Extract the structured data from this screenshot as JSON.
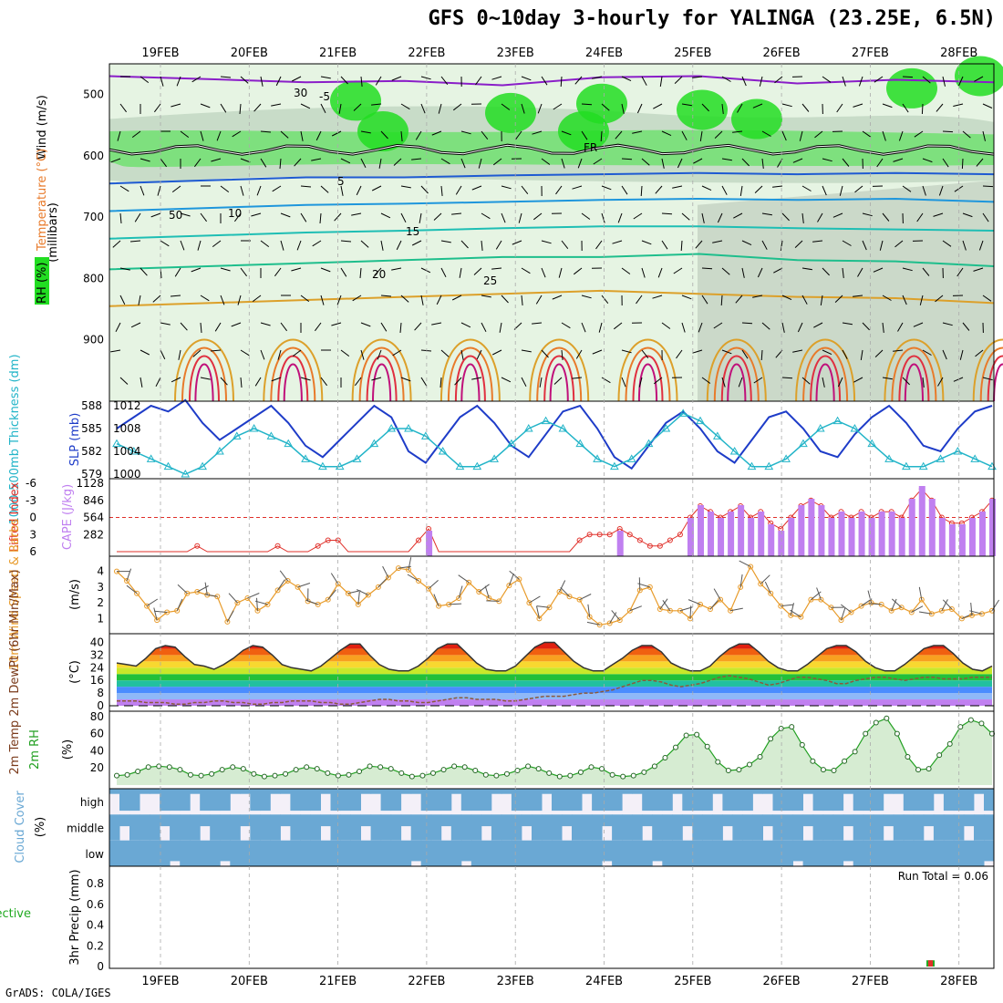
{
  "header": {
    "title": "GFS 0~10day 3-hourly for YALINGA (23.25E, 6.5N)",
    "credit": "GrADS: COLA/IGES"
  },
  "dates": [
    "19FEB",
    "20FEB",
    "21FEB",
    "22FEB",
    "23FEB",
    "24FEB",
    "25FEB",
    "26FEB",
    "27FEB",
    "28FEB"
  ],
  "colors": {
    "rh_light": "#e6f4e3",
    "rh_mid": "#c8dcc8",
    "rh_grey": "#b4c3b4",
    "rh_green": "#7ee07e",
    "rh_bright": "#22dd22",
    "thickness": "#22b4c8",
    "slp": "#1e3cc8",
    "lifted": "#e0302a",
    "cape": "#c080f0",
    "wind": "#e89b2a",
    "rh2m": "#22a022",
    "cloud": "#6aa8d4",
    "cloud_gap": "#e8e8e8",
    "precip": "#22aa22",
    "precip_conv": "#e0302a",
    "grid": "#aaaaaa"
  },
  "chart_data": [
    {
      "id": "upper-air",
      "type": "heatmap",
      "ylabel": "(millibars)",
      "side_labels": [
        "Wind (m/s)",
        "Temperature (°C)",
        "RH (%)"
      ],
      "yticks": [
        500,
        600,
        700,
        800,
        900
      ],
      "ylim": [
        1000,
        450
      ],
      "contour_labels": [
        "-5",
        "5",
        "10",
        "15",
        "20",
        "25",
        "FR",
        "30",
        "50"
      ],
      "freezing_level_mb": 590,
      "isotherms": [
        {
          "t": -5,
          "mb": [
            470,
            475,
            480,
            478,
            485,
            472,
            470,
            482,
            476,
            480
          ]
        },
        {
          "t": 5,
          "mb": [
            645,
            640,
            635,
            635,
            632,
            630,
            628,
            630,
            628,
            630
          ]
        },
        {
          "t": 10,
          "mb": [
            690,
            685,
            680,
            678,
            675,
            672,
            670,
            672,
            670,
            675
          ]
        },
        {
          "t": 15,
          "mb": [
            735,
            730,
            725,
            722,
            718,
            715,
            715,
            718,
            720,
            722
          ]
        },
        {
          "t": 20,
          "mb": [
            785,
            780,
            775,
            770,
            765,
            765,
            760,
            770,
            772,
            780
          ]
        },
        {
          "t": 25,
          "mb": [
            845,
            840,
            835,
            830,
            825,
            820,
            825,
            830,
            832,
            840
          ]
        }
      ]
    },
    {
      "id": "slp-thickness",
      "type": "line",
      "left_axis": {
        "label": "1000-500mb Thickness (dm)",
        "ticks": [
          579,
          582,
          585,
          588
        ]
      },
      "right_axis": {
        "label": "SLP (mb)",
        "ticks": [
          1000,
          1004,
          1008,
          1012
        ]
      },
      "series": [
        {
          "name": "SLP (mb)",
          "values": [
            1008,
            1010,
            1012,
            1011,
            1013,
            1009,
            1006,
            1008,
            1010,
            1012,
            1009,
            1005,
            1003,
            1006,
            1009,
            1012,
            1010,
            1004,
            1002,
            1006,
            1010,
            1012,
            1009,
            1005,
            1003,
            1007,
            1011,
            1012,
            1008,
            1003,
            1001,
            1005,
            1009,
            1011,
            1008,
            1004,
            1002,
            1006,
            1010,
            1011,
            1008,
            1004,
            1003,
            1007,
            1010,
            1012,
            1009,
            1005,
            1004,
            1008,
            1011,
            1012
          ]
        },
        {
          "name": "1000-500mb Thickness (dm)",
          "values": [
            583,
            582,
            581,
            580,
            579,
            580,
            582,
            584,
            585,
            584,
            583,
            581,
            580,
            580,
            581,
            583,
            585,
            585,
            584,
            582,
            580,
            580,
            581,
            583,
            585,
            586,
            585,
            583,
            581,
            580,
            581,
            583,
            585,
            587,
            586,
            584,
            582,
            580,
            580,
            581,
            583,
            585,
            586,
            585,
            583,
            581,
            580,
            580,
            581,
            582,
            581,
            580
          ]
        }
      ]
    },
    {
      "id": "lifted-cape",
      "type": "bar",
      "left_axis": {
        "label": "Lifted Index",
        "ticks": [
          -6,
          -3,
          0,
          3,
          6
        ]
      },
      "right_axis": {
        "label": "CAPE (J/kg)",
        "ticks": [
          282,
          564,
          846,
          1128
        ]
      },
      "lifted_index": [
        6,
        6,
        6,
        6,
        6,
        6,
        6,
        6,
        5,
        6,
        6,
        6,
        6,
        6,
        6,
        6,
        5,
        6,
        6,
        6,
        5,
        4,
        4,
        6,
        6,
        6,
        6,
        6,
        6,
        6,
        4,
        2,
        6,
        6,
        6,
        6,
        6,
        6,
        6,
        6,
        6,
        6,
        6,
        6,
        6,
        6,
        4,
        3,
        3,
        3,
        2,
        3,
        4,
        5,
        5,
        4,
        3,
        0,
        -2,
        -1,
        0,
        -1,
        -2,
        0,
        -1,
        1,
        2,
        0,
        -2,
        -3,
        -2,
        0,
        -1,
        0,
        -1,
        0,
        -1,
        -1,
        0,
        -3,
        -5,
        -3,
        0,
        1,
        1,
        0,
        -1,
        -3
      ]
    },
    {
      "id": "wind-10m",
      "type": "line",
      "label": "10m Wind Speed & Barbs",
      "ylabel": "(m/s)",
      "yticks": [
        1,
        2,
        3,
        4
      ],
      "series": [
        {
          "name": "10m Wind Speed",
          "values": [
            4.0,
            3.4,
            2.6,
            1.8,
            0.9,
            1.4,
            1.5,
            2.6,
            2.7,
            2.5,
            2.4,
            0.8,
            2.0,
            2.3,
            1.5,
            1.9,
            2.8,
            3.4,
            3.0,
            2.1,
            1.9,
            2.2,
            3.2,
            2.6,
            1.9,
            2.5,
            3.0,
            3.6,
            4.2,
            4.1,
            3.4,
            2.9,
            1.8,
            1.9,
            2.3,
            3.3,
            2.7,
            2.3,
            2.1,
            3.1,
            3.5,
            2.0,
            1.0,
            1.7,
            2.7,
            2.4,
            2.2,
            1.1,
            0.6,
            0.7,
            0.9,
            1.5,
            2.8,
            3.0,
            1.6,
            1.5,
            1.5,
            1.0,
            1.9,
            1.6,
            2.2,
            1.5,
            3.0,
            4.3,
            3.2,
            2.6,
            1.8,
            1.2,
            1.1,
            2.2,
            2.2,
            1.7,
            0.9,
            1.4,
            1.8,
            2.0,
            1.9,
            1.5,
            1.7,
            1.4,
            2.2,
            1.3,
            1.5,
            1.6,
            1.0,
            1.2,
            1.3,
            1.5
          ]
        }
      ]
    },
    {
      "id": "temp-2m",
      "type": "area",
      "label": "2m Temp 2m DewPt (6hr Min/Max)",
      "ylabel": "(°C)",
      "yticks": [
        0,
        8,
        16,
        24,
        32,
        40
      ],
      "series": [
        {
          "name": "2m Temp",
          "values": [
            27,
            26,
            25,
            30,
            36,
            38,
            37,
            31,
            26,
            25,
            23,
            26,
            30,
            35,
            38,
            37,
            32,
            26,
            24,
            23,
            22,
            25,
            30,
            35,
            39,
            39,
            32,
            26,
            23,
            22,
            22,
            25,
            30,
            36,
            39,
            39,
            33,
            27,
            23,
            22,
            22,
            25,
            31,
            37,
            40,
            40,
            34,
            28,
            24,
            22,
            22,
            26,
            30,
            35,
            38,
            38,
            34,
            27,
            24,
            22,
            22,
            25,
            31,
            36,
            39,
            39,
            34,
            28,
            24,
            22,
            22,
            26,
            31,
            36,
            38,
            38,
            34,
            28,
            24,
            22,
            22,
            26,
            31,
            36,
            38,
            38,
            33,
            27,
            23,
            22,
            25
          ]
        },
        {
          "name": "2m DewPt",
          "values": [
            3,
            3,
            3,
            2,
            2,
            2,
            1,
            1,
            2,
            2,
            3,
            3,
            2,
            2,
            1,
            1,
            2,
            2,
            3,
            3,
            3,
            2,
            2,
            1,
            1,
            2,
            3,
            4,
            4,
            3,
            3,
            2,
            2,
            3,
            4,
            5,
            5,
            4,
            4,
            4,
            3,
            3,
            4,
            5,
            6,
            6,
            6,
            7,
            8,
            8,
            9,
            10,
            12,
            14,
            16,
            16,
            15,
            13,
            12,
            13,
            14,
            16,
            18,
            19,
            18,
            17,
            15,
            13,
            14,
            16,
            18,
            18,
            17,
            16,
            14,
            14,
            16,
            17,
            18,
            18,
            17,
            16,
            17,
            18,
            18,
            17,
            17,
            17,
            18,
            18,
            18
          ]
        }
      ]
    },
    {
      "id": "rh-2m",
      "type": "area",
      "label": "2m RH",
      "ylabel": "(%)",
      "yticks": [
        20,
        40,
        60,
        80
      ],
      "series": [
        {
          "name": "2m RH",
          "values": [
            11,
            12,
            16,
            21,
            22,
            21,
            18,
            12,
            11,
            13,
            18,
            21,
            19,
            13,
            10,
            11,
            13,
            18,
            21,
            19,
            14,
            11,
            12,
            16,
            22,
            21,
            19,
            14,
            10,
            11,
            14,
            18,
            22,
            21,
            17,
            12,
            11,
            13,
            17,
            22,
            19,
            14,
            10,
            11,
            15,
            21,
            19,
            12,
            10,
            11,
            15,
            22,
            32,
            44,
            58,
            59,
            45,
            27,
            17,
            18,
            24,
            33,
            54,
            66,
            68,
            47,
            28,
            18,
            17,
            28,
            39,
            60,
            73,
            78,
            60,
            33,
            18,
            19,
            35,
            48,
            68,
            76,
            72,
            60
          ]
        }
      ]
    },
    {
      "id": "cloud-cover",
      "type": "heatmap",
      "label": "Cloud Cover",
      "ylabel": "(%)",
      "levels": [
        "high",
        "middle",
        "low"
      ]
    },
    {
      "id": "precip-3hr",
      "type": "bar",
      "label": "Total / Rain Convective",
      "ylabel": "3hr Precip (mm)",
      "yticks": [
        0,
        0.2,
        0.4,
        0.6,
        0.8
      ],
      "ylim": [
        0,
        0.95
      ],
      "run_total_label": "Run Total = 0.06",
      "values": [
        {
          "x": "27FEB 15Z",
          "total": 0.06,
          "convective": 0.06
        }
      ]
    }
  ]
}
